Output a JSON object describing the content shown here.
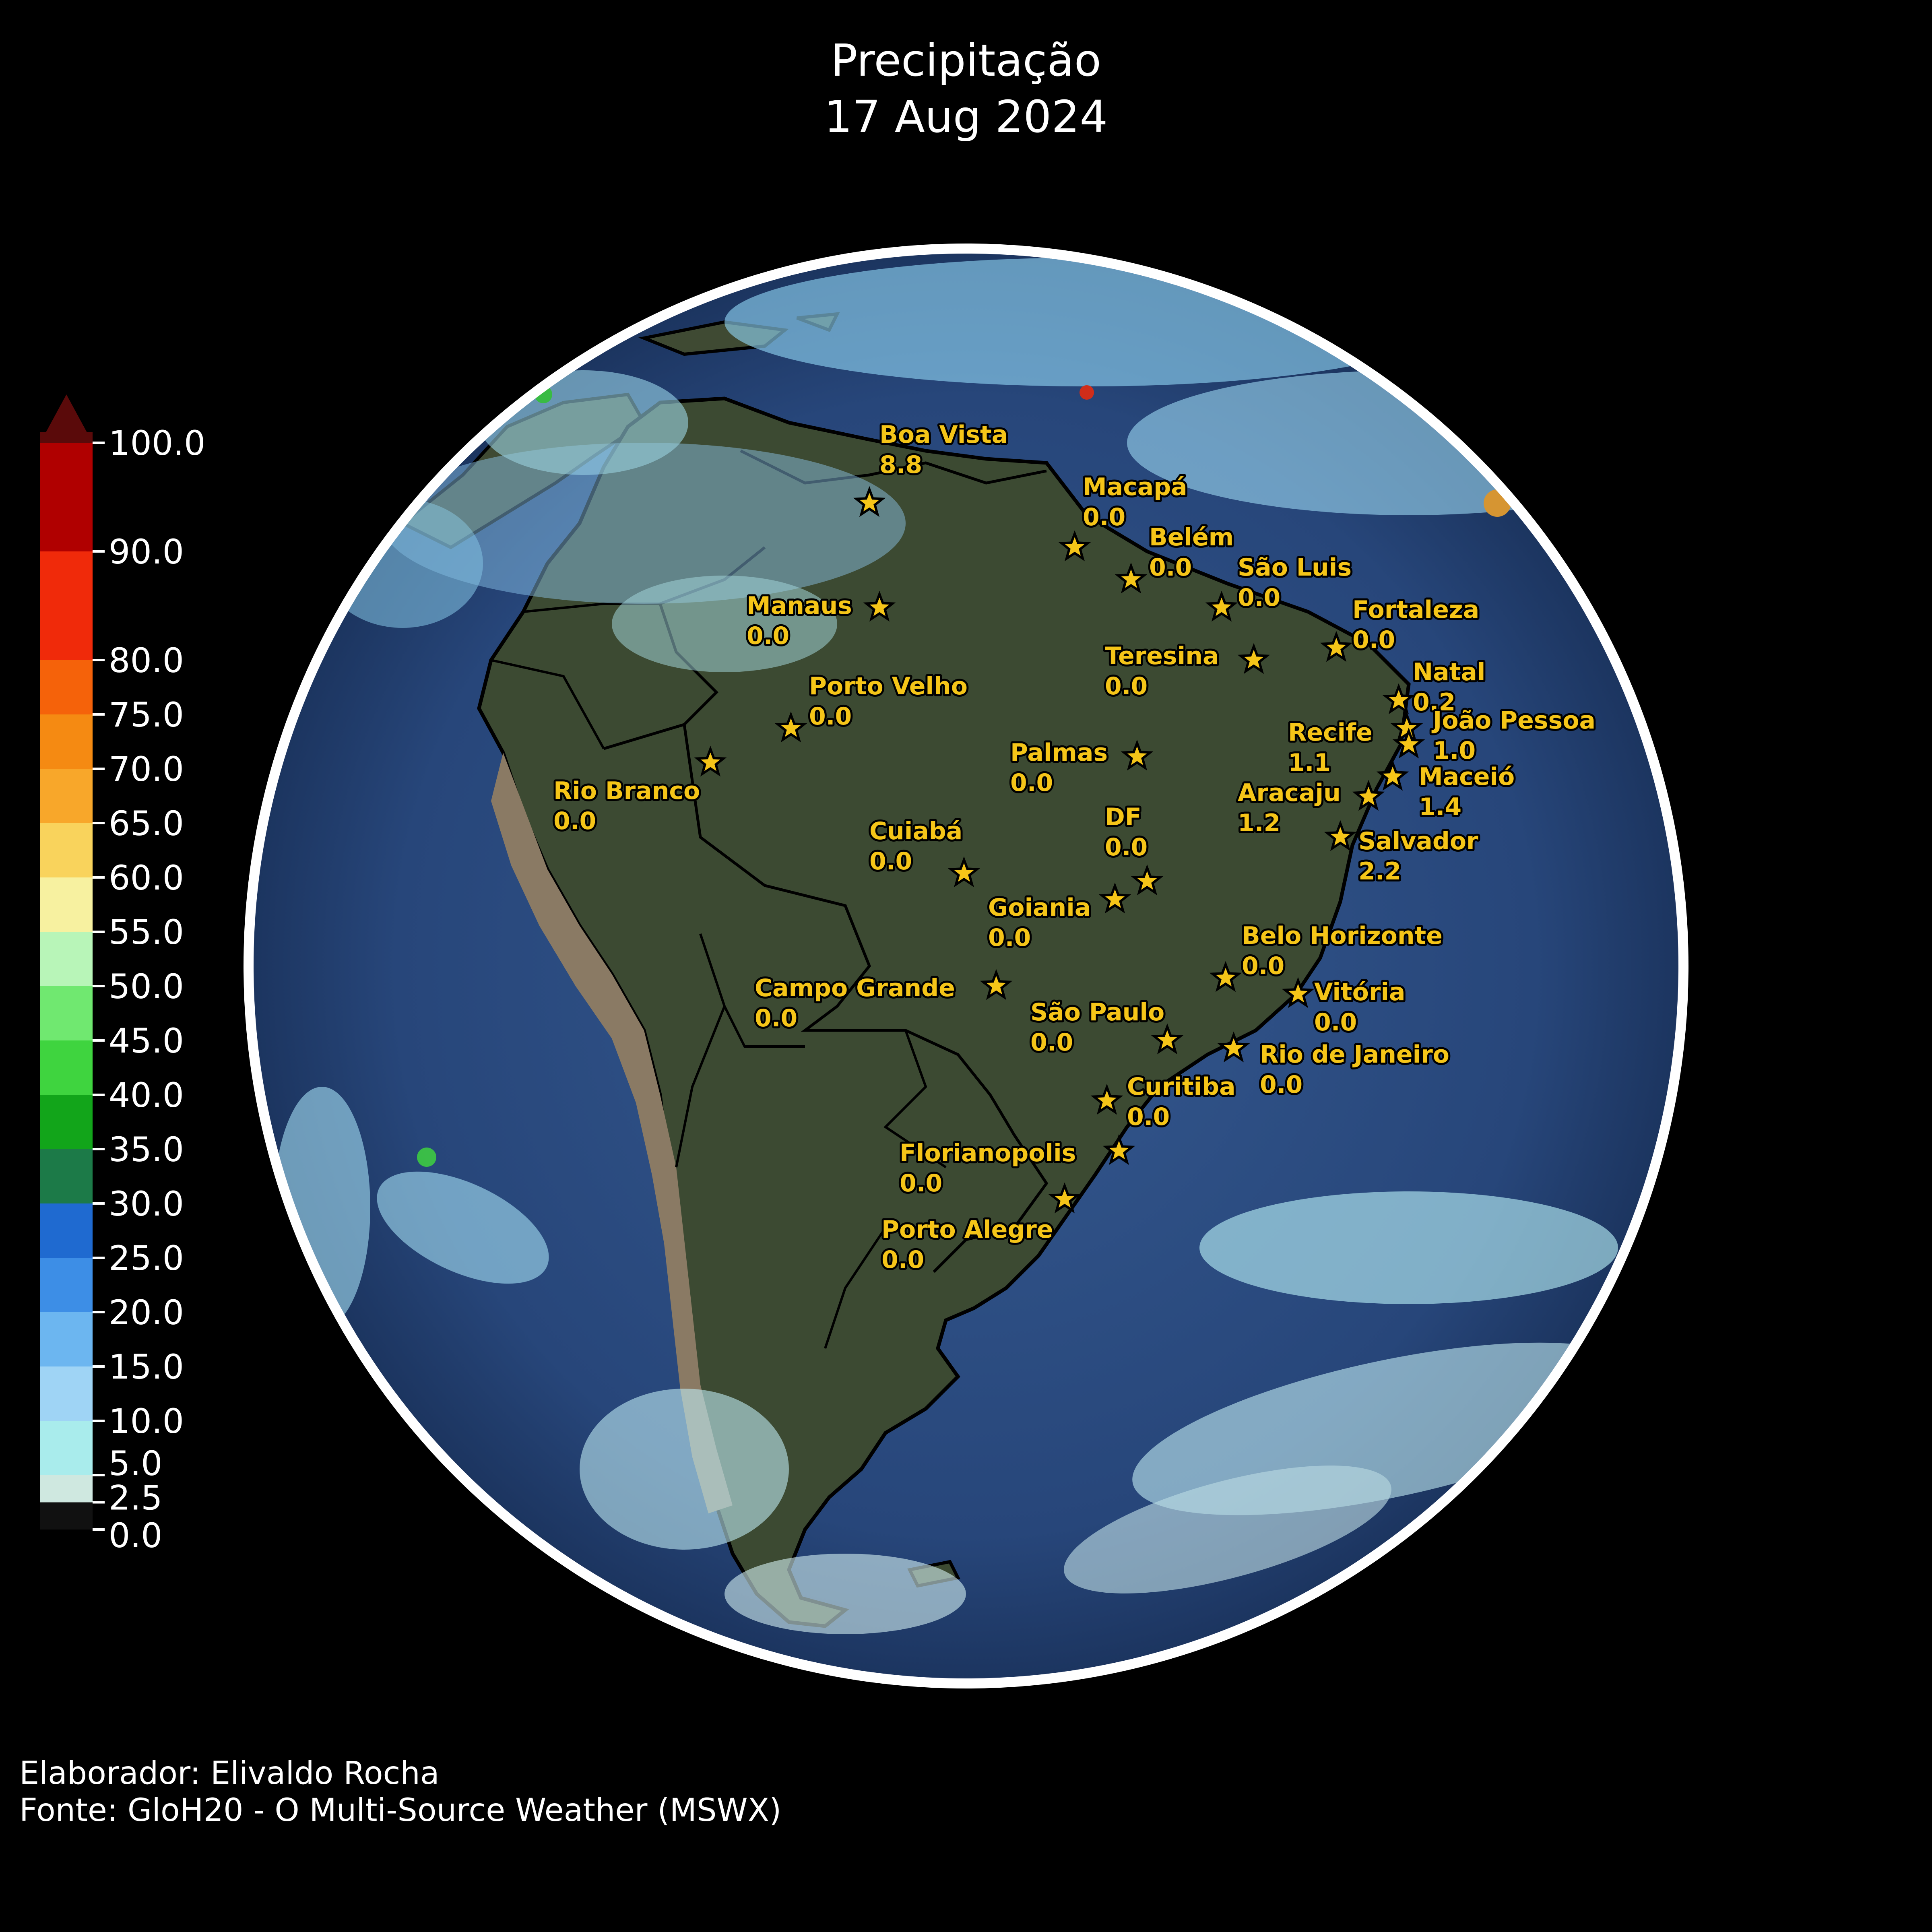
{
  "title": {
    "line1": "Precipitação",
    "line2": "17 Aug 2024"
  },
  "credits": {
    "author": "Elaborador: Elivaldo Rocha",
    "source": "Fonte: GloH20 - O Multi-Source Weather (MSWX)"
  },
  "colorbar": {
    "ticks": [
      "100.0",
      "90.0",
      "80.0",
      "75.0",
      "70.0",
      "65.0",
      "60.0",
      "55.0",
      "50.0",
      "45.0",
      "40.0",
      "35.0",
      "30.0",
      "25.0",
      "20.0",
      "15.0",
      "10.0",
      "5.0",
      "2.5",
      "0.0"
    ],
    "colors": {
      "0.0": "#111111",
      "2.5": "#cfe8e0",
      "5.0": "#a9ecec",
      "10.0": "#9fd4f5",
      "15.0": "#6cb6f0",
      "20.0": "#3d8ee6",
      "25.0": "#1f6ad0",
      "30.0": "#1c7a48",
      "35.0": "#12a51a",
      "40.0": "#3fd43f",
      "45.0": "#70e870",
      "50.0": "#b8f5b8",
      "55.0": "#f7f1a0",
      "60.0": "#f9d35c",
      "65.0": "#f8a72a",
      "70.0": "#f58a12",
      "75.0": "#f5620a",
      "80.0": "#f02a0a",
      "90.0": "#b00000",
      "100.0": "#5a0a0a"
    }
  },
  "colors": {
    "background": "#000000",
    "ocean": "#2b4a7d",
    "land": "#3c4a32",
    "andes": "#8a7a64",
    "globe_rim": "#ffffff",
    "marker": "#f5c518",
    "label": "#f5c518"
  },
  "cities": [
    {
      "name": "Boa Vista",
      "value": "8.8"
    },
    {
      "name": "Macapá",
      "value": "0.0"
    },
    {
      "name": "Belém",
      "value": "0.0"
    },
    {
      "name": "São Luis",
      "value": "0.0"
    },
    {
      "name": "Manaus",
      "value": "0.0"
    },
    {
      "name": "Fortaleza",
      "value": "0.0"
    },
    {
      "name": "Teresina",
      "value": "0.0"
    },
    {
      "name": "Natal",
      "value": "0.2"
    },
    {
      "name": "Porto Velho",
      "value": "0.0"
    },
    {
      "name": "João Pessoa",
      "value": "1.0"
    },
    {
      "name": "Recife",
      "value": "1.1"
    },
    {
      "name": "Palmas",
      "value": "0.0"
    },
    {
      "name": "Rio Branco",
      "value": "0.0"
    },
    {
      "name": "Maceió",
      "value": "1.4"
    },
    {
      "name": "Aracaju",
      "value": "1.2"
    },
    {
      "name": "DF",
      "value": "0.0"
    },
    {
      "name": "Cuiabá",
      "value": "0.0"
    },
    {
      "name": "Salvador",
      "value": "2.2"
    },
    {
      "name": "Goiania",
      "value": "0.0"
    },
    {
      "name": "Belo Horizonte",
      "value": "0.0"
    },
    {
      "name": "Campo Grande",
      "value": "0.0"
    },
    {
      "name": "Vitória",
      "value": "0.0"
    },
    {
      "name": "São Paulo",
      "value": "0.0"
    },
    {
      "name": "Rio de Janeiro",
      "value": "0.0"
    },
    {
      "name": "Curitiba",
      "value": "0.0"
    },
    {
      "name": "Florianopolis",
      "value": "0.0"
    },
    {
      "name": "Porto Alegre",
      "value": "0.0"
    }
  ]
}
